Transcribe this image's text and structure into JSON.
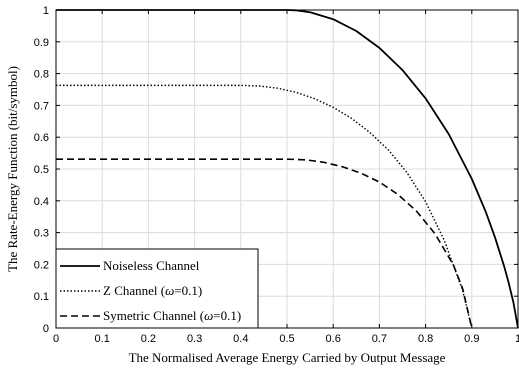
{
  "chart_data": {
    "type": "line",
    "title": "",
    "xlabel": "The Normalised Average Energy Carried by Output Message",
    "ylabel": "The Rate-Energy Function (bit/symbol)",
    "xlim": [
      0,
      1
    ],
    "ylim": [
      0,
      1
    ],
    "x_ticks": [
      "0",
      "0.1",
      "0.2",
      "0.3",
      "0.4",
      "0.5",
      "0.6",
      "0.7",
      "0.8",
      "0.9",
      "1"
    ],
    "y_ticks": [
      "0",
      "0.1",
      "0.2",
      "0.3",
      "0.4",
      "0.5",
      "0.6",
      "0.7",
      "0.8",
      "0.9",
      "1"
    ],
    "grid": true,
    "legend_position": "bottom-left",
    "series": [
      {
        "name": "Noiseless Channel",
        "line_style": "solid",
        "color": "#000000",
        "x": [
          0,
          0.5,
          0.52,
          0.55,
          0.6,
          0.65,
          0.7,
          0.75,
          0.8,
          0.85,
          0.9,
          0.93,
          0.95,
          0.97,
          0.98,
          0.99,
          1.0
        ],
        "y": [
          1.0,
          1.0,
          0.999,
          0.993,
          0.971,
          0.934,
          0.881,
          0.811,
          0.722,
          0.61,
          0.469,
          0.366,
          0.286,
          0.194,
          0.141,
          0.081,
          0.0
        ]
      },
      {
        "name": "Z Channel (ω=0.1)",
        "line_style": "dotted",
        "color": "#000000",
        "x": [
          0,
          0.4,
          0.44,
          0.48,
          0.52,
          0.56,
          0.6,
          0.64,
          0.68,
          0.72,
          0.76,
          0.8,
          0.84,
          0.88,
          0.9
        ],
        "y": [
          0.763,
          0.763,
          0.761,
          0.754,
          0.741,
          0.721,
          0.694,
          0.659,
          0.614,
          0.559,
          0.488,
          0.397,
          0.277,
          0.119,
          0.0
        ]
      },
      {
        "name": "Symetric Channel (ω=0.1)",
        "line_style": "dashed",
        "color": "#000000",
        "x": [
          0,
          0.5,
          0.54,
          0.58,
          0.62,
          0.66,
          0.7,
          0.74,
          0.78,
          0.82,
          0.86,
          0.88,
          0.9
        ],
        "y": [
          0.531,
          0.531,
          0.529,
          0.521,
          0.507,
          0.487,
          0.459,
          0.42,
          0.368,
          0.297,
          0.199,
          0.125,
          0.0
        ]
      }
    ],
    "legend": [
      {
        "prefix": "Noiseless Channel",
        "omega": "",
        "suffix": ""
      },
      {
        "prefix": "Z Channel (",
        "omega": "ω",
        "suffix": "=0.1)"
      },
      {
        "prefix": "Symetric Channel (",
        "omega": "ω",
        "suffix": "=0.1)"
      }
    ]
  }
}
